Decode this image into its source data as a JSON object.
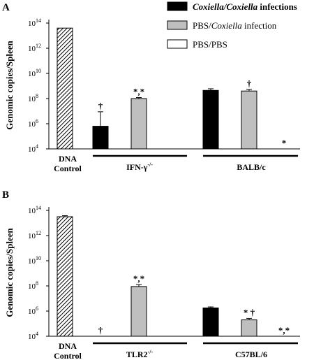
{
  "legend": {
    "entries": [
      {
        "label_a": "Coxiella/Coxiella",
        "label_b": " infections",
        "fill": "black"
      },
      {
        "label_a": "PBS/",
        "label_b": "Coxiella",
        "label_c": " infection",
        "fill": "gray"
      },
      {
        "label_a": "PBS/PBS",
        "fill": "white"
      }
    ]
  },
  "colors": {
    "black": "#000000",
    "gray": "#bfbfbf",
    "white": "#ffffff",
    "hatch": "#000000"
  },
  "chart_data": [
    {
      "type": "bar",
      "panel_label": "A",
      "ylabel": "Genomic copies/Spleen",
      "yscale": "log",
      "ylim_exp": [
        4,
        14
      ],
      "yticks": [
        {
          "base": "10",
          "exp": "14",
          "value_exp": 14
        },
        {
          "base": "10",
          "exp": "12",
          "value_exp": 12
        },
        {
          "base": "10",
          "exp": "10",
          "value_exp": 10
        },
        {
          "base": "10",
          "exp": "8",
          "value_exp": 8
        },
        {
          "base": "10",
          "exp": "6",
          "value_exp": 6
        },
        {
          "base": "10",
          "exp": "4",
          "value_exp": 4
        }
      ],
      "groups": [
        {
          "label_line1": "DNA",
          "label_line2": "Control",
          "underline": false
        },
        {
          "label": "IFN-γ",
          "superscript": "-/-",
          "underline": true
        },
        {
          "label": "BALB/c",
          "underline": true
        }
      ],
      "bars": [
        {
          "group": 0,
          "slot": 0,
          "fill": "hatch",
          "value_exp": 13.6,
          "err_exp": 13.6,
          "annotation": ""
        },
        {
          "group": 1,
          "slot": 0,
          "fill": "black",
          "value_exp": 5.8,
          "err_exp": 6.95,
          "annotation": "†"
        },
        {
          "group": 1,
          "slot": 1,
          "fill": "gray",
          "value_exp": 8.0,
          "err_exp": 8.08,
          "annotation": "*,*"
        },
        {
          "group": 1,
          "slot": 2,
          "fill": "white",
          "value_exp": 4.0,
          "err_exp": 4.0,
          "annotation": ""
        },
        {
          "group": 2,
          "slot": 0,
          "fill": "black",
          "value_exp": 8.65,
          "err_exp": 8.78,
          "annotation": ""
        },
        {
          "group": 2,
          "slot": 1,
          "fill": "gray",
          "value_exp": 8.6,
          "err_exp": 8.72,
          "annotation": "†"
        },
        {
          "group": 2,
          "slot": 2,
          "fill": "white",
          "value_exp": 4.0,
          "err_exp": 4.0,
          "annotation": "*"
        }
      ]
    },
    {
      "type": "bar",
      "panel_label": "B",
      "ylabel": "Genomic copies/Spleen",
      "yscale": "log",
      "ylim_exp": [
        4,
        14
      ],
      "yticks": [
        {
          "base": "10",
          "exp": "14",
          "value_exp": 14
        },
        {
          "base": "10",
          "exp": "12",
          "value_exp": 12
        },
        {
          "base": "10",
          "exp": "10",
          "value_exp": 10
        },
        {
          "base": "10",
          "exp": "8",
          "value_exp": 8
        },
        {
          "base": "10",
          "exp": "6",
          "value_exp": 6
        },
        {
          "base": "10",
          "exp": "4",
          "value_exp": 4
        }
      ],
      "groups": [
        {
          "label_line1": "DNA",
          "label_line2": "Control",
          "underline": false
        },
        {
          "label": "TLR2",
          "superscript": "-/-",
          "underline": true
        },
        {
          "label": "C57BL/6",
          "underline": true
        }
      ],
      "bars": [
        {
          "group": 0,
          "slot": 0,
          "fill": "hatch",
          "value_exp": 13.5,
          "err_exp": 13.58,
          "annotation": ""
        },
        {
          "group": 1,
          "slot": 0,
          "fill": "black",
          "value_exp": 4.0,
          "err_exp": 4.0,
          "annotation": "†"
        },
        {
          "group": 1,
          "slot": 1,
          "fill": "gray",
          "value_exp": 7.95,
          "err_exp": 8.1,
          "annotation": "*,*"
        },
        {
          "group": 1,
          "slot": 2,
          "fill": "white",
          "value_exp": 4.0,
          "err_exp": 4.0,
          "annotation": ""
        },
        {
          "group": 2,
          "slot": 0,
          "fill": "black",
          "value_exp": 6.25,
          "err_exp": 6.33,
          "annotation": ""
        },
        {
          "group": 2,
          "slot": 1,
          "fill": "gray",
          "value_exp": 5.3,
          "err_exp": 5.42,
          "annotation": "* †"
        },
        {
          "group": 2,
          "slot": 2,
          "fill": "white",
          "value_exp": 4.0,
          "err_exp": 4.0,
          "annotation": "*,*"
        }
      ]
    }
  ]
}
